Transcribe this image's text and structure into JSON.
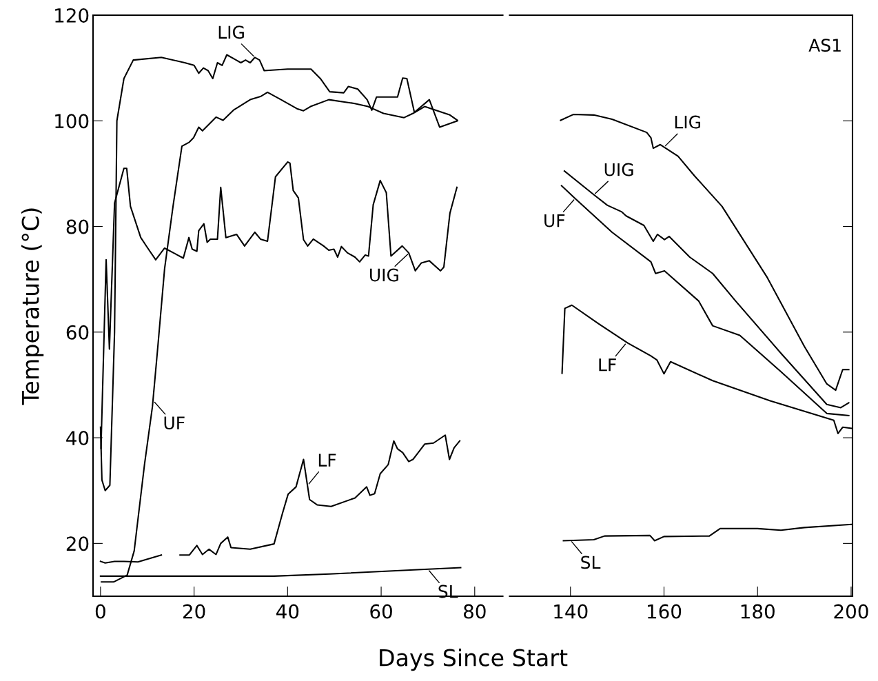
{
  "chart_data": [
    {
      "type": "line",
      "xlabel": "Days Since Start",
      "ylabel": "Temperature (°C)",
      "xlim": [
        -1.6,
        86
      ],
      "ylim": [
        10,
        120
      ],
      "xticks": [
        0,
        20,
        40,
        60,
        80
      ],
      "yticks": [
        20,
        40,
        60,
        80,
        100,
        120
      ],
      "grid": false,
      "marker": "none",
      "line_style": "solid",
      "series": [
        {
          "color": "#000000",
          "x": [
            0,
            0.3,
            1,
            2,
            3,
            3.5,
            5,
            7,
            13,
            18,
            20,
            21,
            22,
            23,
            24,
            25,
            26,
            27,
            29,
            30,
            31,
            32,
            33,
            34,
            35,
            40,
            45,
            47,
            49,
            52,
            53,
            55,
            57,
            58,
            59,
            63.5,
            64.6,
            65.5,
            67.1,
            70.3,
            72.5,
            76.3
          ],
          "values": [
            42,
            32,
            30,
            31,
            60,
            100,
            108,
            111.5,
            112,
            111,
            110.5,
            109,
            110,
            109.5,
            108,
            111,
            110.5,
            112.5,
            111.5,
            111,
            111.5,
            111,
            112,
            111.5,
            109.5,
            109.8,
            109.8,
            108,
            105.5,
            105.3,
            106.5,
            106,
            104,
            102,
            104.5,
            104.5,
            108.1,
            108,
            101.6,
            104,
            98.8,
            100
          ]
        },
        {
          "color": "#000000",
          "x": [
            0.1,
            1.2,
            1.9,
            3,
            5,
            5.6,
            6.4,
            8.6,
            10.1,
            11.8,
            13.7,
            17.7,
            18.9,
            19.6,
            20.6,
            21,
            22.1,
            22.8,
            23.5,
            25,
            25.7,
            26.8,
            29.1,
            30.8,
            33,
            34.2,
            35.7,
            37.4,
            40,
            40.5,
            41.2,
            42.3,
            43.4,
            44.3,
            45.5,
            47.7,
            48.8,
            49.9,
            50.7,
            51.5,
            52.8,
            54.4,
            55.4,
            56.6,
            57.3,
            58.3,
            59.8,
            61.1,
            62.1,
            64.5,
            65.9,
            67.3,
            68.6,
            70.3,
            72.7,
            73.4,
            74.7,
            76.2
          ],
          "values": [
            38,
            73.7,
            56.8,
            84.4,
            91,
            91,
            83.8,
            77.9,
            75.9,
            73.7,
            75.9,
            74,
            77.9,
            75.7,
            75.3,
            79.2,
            80.5,
            77,
            77.6,
            77.6,
            87.4,
            77.9,
            78.5,
            76.3,
            78.9,
            77.6,
            77.2,
            89.4,
            92.2,
            92,
            86.8,
            85.4,
            77.5,
            76.3,
            77.6,
            76.3,
            75.5,
            75.7,
            74.2,
            76.2,
            75,
            74.2,
            73.3,
            74.6,
            74.4,
            84.1,
            88.7,
            86.4,
            74.4,
            76.3,
            75,
            71.6,
            73.1,
            73.5,
            71.6,
            72.3,
            82.5,
            87.4
          ]
        },
        {
          "color": "#000000",
          "x": [
            0.2,
            2.8,
            5.7,
            7.2,
            9.4,
            11.1,
            12.3,
            13.7,
            15.5,
            17.4,
            18.9,
            19.9,
            21,
            21.8,
            24.7,
            26.2,
            28.4,
            32,
            34.2,
            35.7,
            38.6,
            42,
            43.4,
            44.9,
            48.8,
            54.2,
            57.2,
            60.5,
            64.9,
            66.8,
            69.3,
            72.7,
            74.7,
            76.3
          ],
          "values": [
            12.7,
            12.7,
            14,
            18.6,
            34.9,
            45.9,
            57.7,
            72,
            83.8,
            95.2,
            95.9,
            96.8,
            98.8,
            98.1,
            100.7,
            100.1,
            102,
            104,
            104.6,
            105.4,
            104,
            102.3,
            101.9,
            102.7,
            104,
            103.3,
            102.7,
            101.4,
            100.6,
            101.4,
            102.7,
            101.7,
            101.1,
            100.1
          ]
        },
        {
          "color": "#000000",
          "x": [
            0,
            1,
            3,
            5,
            8,
            13,
            15,
            17,
            19,
            20.6,
            21.8,
            23.2,
            24.7,
            25.7,
            27.2,
            27.9,
            32,
            37.1,
            38.9,
            40.1,
            41.8,
            43.4,
            44.7,
            46.3,
            49.3,
            54.4,
            56.9,
            57.6,
            58.6,
            59.8,
            61.5,
            62.7,
            63.5,
            64.6,
            65.9,
            66.8,
            69.3,
            71.2,
            73.7,
            74.6,
            75.6,
            76.8
          ],
          "values": [
            16.6,
            16.3,
            16.6,
            16.6,
            16.5,
            17.8,
            null,
            17.8,
            17.8,
            19.6,
            17.9,
            18.9,
            17.9,
            20,
            21.2,
            19.2,
            18.9,
            19.9,
            25.7,
            29.3,
            30.7,
            35.9,
            28.3,
            27.3,
            27,
            28.6,
            30.7,
            29.1,
            29.4,
            33.2,
            34.9,
            39.4,
            37.9,
            37.2,
            35.5,
            35.9,
            38.8,
            39,
            40.5,
            35.9,
            38.1,
            39.4
          ]
        },
        {
          "color": "#000000",
          "x": [
            0,
            37,
            49,
            67,
            77
          ],
          "values": [
            13.8,
            13.8,
            14.2,
            15,
            15.4
          ]
        }
      ],
      "annotations": [
        {
          "text": "LIG",
          "x": 33,
          "y": 112
        },
        {
          "text": "UIG",
          "x": 66,
          "y": 75
        },
        {
          "text": "UF",
          "x": 11.3,
          "y": 47
        },
        {
          "text": "LF",
          "x": 44.3,
          "y": 31
        },
        {
          "text": "SL",
          "x": 70,
          "y": 15.1
        }
      ]
    },
    {
      "type": "line",
      "xlim": [
        127,
        200.3
      ],
      "ylim": [
        10,
        120
      ],
      "xticks": [
        140,
        160,
        180,
        200
      ],
      "yticks": [
        20,
        40,
        60,
        80,
        100,
        120
      ],
      "tick_labels": "x",
      "grid": false,
      "marker": "none",
      "line_style": "solid",
      "series": [
        {
          "color": "#000000",
          "x": [
            137.9,
            140.6,
            145,
            148.9,
            156.3,
            157.2,
            157.7,
            159.2,
            163,
            166.5,
            172.4,
            182.1,
            190,
            194.8,
            196.7,
            198.2,
            199.5
          ],
          "values": [
            100.1,
            101.2,
            101.1,
            100.3,
            97.8,
            96.8,
            94.8,
            95.5,
            93.3,
            89.6,
            83.8,
            70.3,
            57.3,
            50.2,
            49,
            52.9,
            52.9
          ]
        },
        {
          "color": "#000000",
          "x": [
            138.7,
            145,
            147.9,
            150.9,
            151.9,
            155.7,
            157.7,
            158.6,
            160.1,
            161.1,
            165.5,
            170.4,
            175.3,
            185,
            194.8,
            197.8,
            199.5
          ],
          "values": [
            90.5,
            86,
            84,
            82.8,
            82,
            80.2,
            77.2,
            78.5,
            77.5,
            78.1,
            74.2,
            71.1,
            65.9,
            56,
            46.3,
            45.7,
            46.6
          ]
        },
        {
          "color": "#000000",
          "x": [
            138.1,
            141,
            148.9,
            157.2,
            158.2,
            160.1,
            167.4,
            170.4,
            176.2,
            185,
            194.8,
            199.5
          ],
          "values": [
            87.7,
            85.3,
            78.9,
            73.3,
            71.1,
            71.6,
            65.9,
            61.2,
            59.4,
            52.5,
            44.6,
            44.2
          ]
        },
        {
          "color": "#000000",
          "x": [
            138.2,
            138.8,
            140.3,
            146,
            152.3,
            157.2,
            158.5,
            160,
            161.4,
            170.4,
            182.7,
            196.3,
            197.2,
            198.2,
            200
          ],
          "values": [
            52.2,
            64.5,
            65.1,
            61.6,
            57.9,
            55.5,
            54.7,
            52.1,
            54.4,
            50.8,
            47,
            43.3,
            40.8,
            42,
            41.8
          ]
        },
        {
          "color": "#000000",
          "x": [
            138.5,
            145,
            147.3,
            157,
            158,
            160,
            169.7,
            172,
            180,
            185,
            190,
            200
          ],
          "values": [
            20.5,
            20.7,
            21.4,
            21.5,
            20.5,
            21.3,
            21.4,
            22.8,
            22.8,
            22.5,
            23,
            23.6
          ]
        }
      ],
      "annotations": [
        "AS1",
        {
          "text": "LIG",
          "x": 160,
          "y": 95
        },
        {
          "text": "UIG",
          "x": 145,
          "y": 86
        },
        {
          "text": "UF",
          "x": 141,
          "y": 85.3
        },
        {
          "text": "LF",
          "x": 152,
          "y": 58
        },
        {
          "text": "SL",
          "x": 140,
          "y": 20.6
        }
      ]
    }
  ]
}
